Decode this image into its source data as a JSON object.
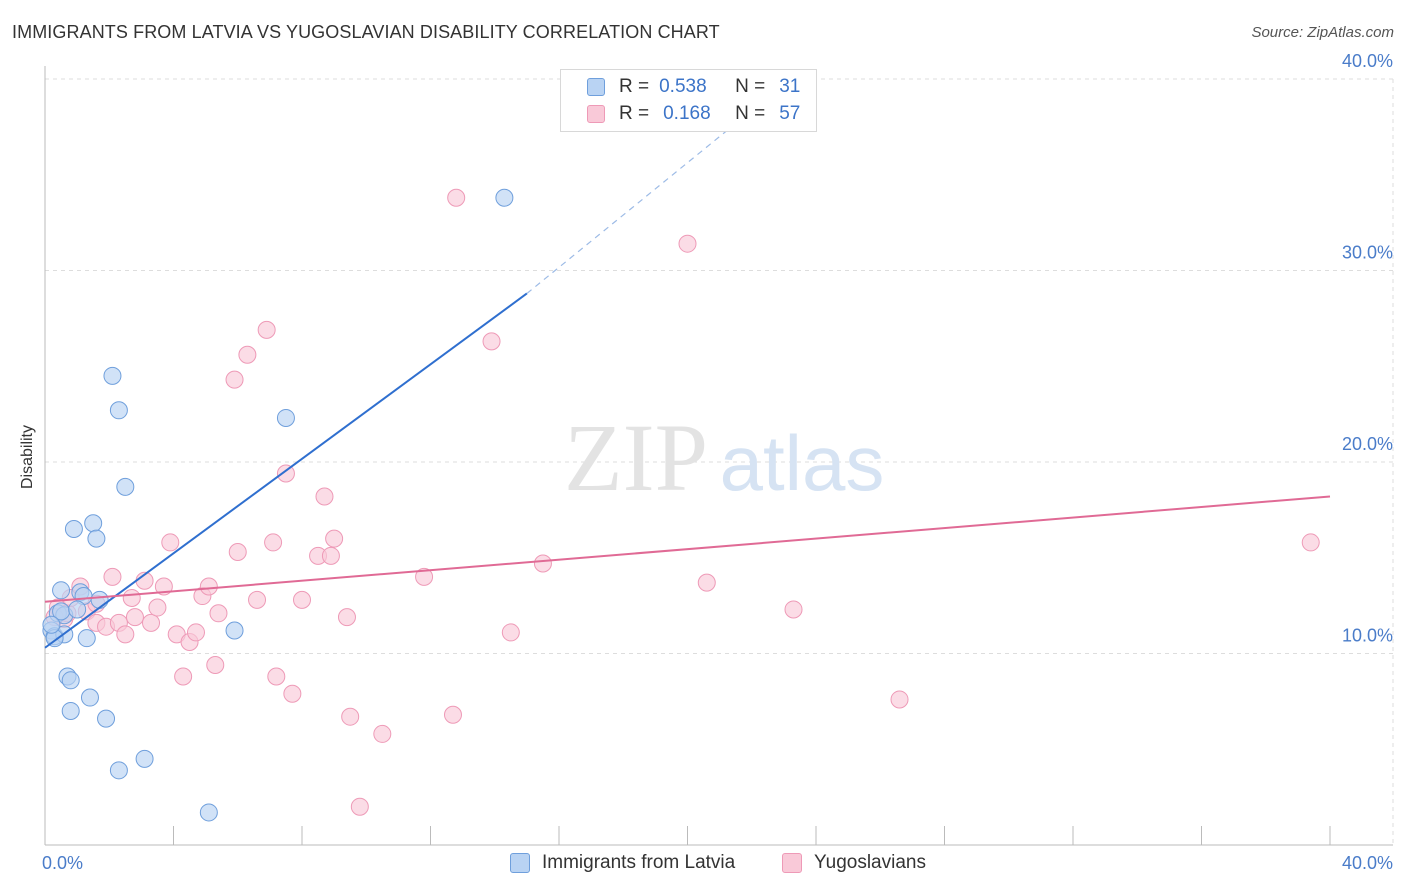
{
  "header": {
    "title": "IMMIGRANTS FROM LATVIA VS YUGOSLAVIAN DISABILITY CORRELATION CHART",
    "source": "Source: ZipAtlas.com"
  },
  "legend": {
    "rows": [
      {
        "r_label": "R =",
        "r_value": "0.538",
        "n_label": "N =",
        "n_value": "31"
      },
      {
        "r_label": "R =",
        "r_value": "0.168",
        "n_label": "N =",
        "n_value": "57"
      }
    ]
  },
  "watermark": {
    "zip": "ZIP",
    "atlas": "atlas"
  },
  "colors": {
    "latvia_fill": "#b9d3f3",
    "latvia_stroke": "#6f9fdc",
    "latvia_line": "#2f6fcf",
    "yugo_fill": "#f9c9d8",
    "yugo_stroke": "#ee9ab7",
    "yugo_line": "#e06a95",
    "tick_text": "#4a7cc9",
    "grid": "#dddddd"
  },
  "chart_data": {
    "type": "scatter",
    "title": "IMMIGRANTS FROM LATVIA VS YUGOSLAVIAN DISABILITY CORRELATION CHART",
    "xlabel": "",
    "ylabel": "Disability",
    "xlim": [
      0,
      40
    ],
    "ylim": [
      0,
      40
    ],
    "x_tick_labels": [
      "0.0%",
      "40.0%"
    ],
    "y_ticks": [
      10,
      20,
      30,
      40
    ],
    "y_tick_labels": [
      "10.0%",
      "20.0%",
      "30.0%",
      "40.0%"
    ],
    "grid": "horizontal dashed",
    "legend_position": "bottom",
    "series": [
      {
        "name": "Immigrants from Latvia",
        "R": 0.538,
        "N": 31,
        "points": [
          [
            0.2,
            11.2
          ],
          [
            0.3,
            10.9
          ],
          [
            0.4,
            12.1
          ],
          [
            0.5,
            13.3
          ],
          [
            0.6,
            12.0
          ],
          [
            0.6,
            11.0
          ],
          [
            0.7,
            8.8
          ],
          [
            0.8,
            7.0
          ],
          [
            0.8,
            8.6
          ],
          [
            0.9,
            16.5
          ],
          [
            1.1,
            13.2
          ],
          [
            1.2,
            13.0
          ],
          [
            1.3,
            10.8
          ],
          [
            1.4,
            7.7
          ],
          [
            1.5,
            16.8
          ],
          [
            1.6,
            16.0
          ],
          [
            1.7,
            12.8
          ],
          [
            1.9,
            6.6
          ],
          [
            2.1,
            24.5
          ],
          [
            2.3,
            3.9
          ],
          [
            2.3,
            22.7
          ],
          [
            2.5,
            18.7
          ],
          [
            3.1,
            4.5
          ],
          [
            5.1,
            1.7
          ],
          [
            5.9,
            11.2
          ],
          [
            7.5,
            22.3
          ],
          [
            14.3,
            33.8
          ],
          [
            0.3,
            10.8
          ],
          [
            0.5,
            12.2
          ],
          [
            1.0,
            12.3
          ],
          [
            0.2,
            11.5
          ]
        ],
        "trend": {
          "x": [
            0,
            15
          ],
          "y": [
            10.3,
            28.8
          ],
          "dashed_extension": {
            "x": [
              15,
              23.2
            ],
            "y": [
              28.8,
              40
            ]
          }
        }
      },
      {
        "name": "Yugoslavians",
        "R": 0.168,
        "N": 57,
        "points": [
          [
            0.4,
            12.4
          ],
          [
            0.6,
            11.8
          ],
          [
            0.7,
            12.1
          ],
          [
            0.8,
            12.9
          ],
          [
            1.1,
            13.5
          ],
          [
            1.3,
            12.2
          ],
          [
            1.6,
            12.6
          ],
          [
            1.6,
            11.6
          ],
          [
            1.9,
            11.4
          ],
          [
            2.1,
            14.0
          ],
          [
            2.3,
            11.6
          ],
          [
            2.5,
            11.0
          ],
          [
            2.7,
            12.9
          ],
          [
            2.8,
            11.9
          ],
          [
            3.1,
            13.8
          ],
          [
            3.3,
            11.6
          ],
          [
            3.5,
            12.4
          ],
          [
            3.7,
            13.5
          ],
          [
            3.9,
            15.8
          ],
          [
            4.1,
            11.0
          ],
          [
            4.3,
            8.8
          ],
          [
            4.5,
            10.6
          ],
          [
            4.7,
            11.1
          ],
          [
            4.9,
            13.0
          ],
          [
            5.1,
            13.5
          ],
          [
            5.3,
            9.4
          ],
          [
            5.4,
            12.1
          ],
          [
            5.9,
            24.3
          ],
          [
            6.0,
            15.3
          ],
          [
            6.3,
            25.6
          ],
          [
            6.6,
            12.8
          ],
          [
            6.9,
            26.9
          ],
          [
            7.1,
            15.8
          ],
          [
            7.2,
            8.8
          ],
          [
            7.5,
            19.4
          ],
          [
            7.7,
            7.9
          ],
          [
            8.0,
            12.8
          ],
          [
            8.5,
            15.1
          ],
          [
            8.7,
            18.2
          ],
          [
            8.9,
            15.1
          ],
          [
            9.0,
            16.0
          ],
          [
            9.4,
            11.9
          ],
          [
            9.5,
            6.7
          ],
          [
            9.8,
            2.0
          ],
          [
            10.5,
            5.8
          ],
          [
            11.8,
            14.0
          ],
          [
            12.7,
            6.8
          ],
          [
            12.8,
            33.8
          ],
          [
            13.9,
            26.3
          ],
          [
            14.5,
            11.1
          ],
          [
            15.5,
            14.7
          ],
          [
            20.0,
            31.4
          ],
          [
            20.6,
            13.7
          ],
          [
            23.3,
            12.3
          ],
          [
            26.6,
            7.6
          ],
          [
            39.4,
            15.8
          ],
          [
            0.3,
            11.9
          ]
        ],
        "trend": {
          "x": [
            0,
            40
          ],
          "y": [
            12.7,
            18.2
          ]
        }
      }
    ]
  },
  "bottom_legend": {
    "items": [
      {
        "label": "Immigrants from Latvia"
      },
      {
        "label": "Yugoslavians"
      }
    ]
  }
}
